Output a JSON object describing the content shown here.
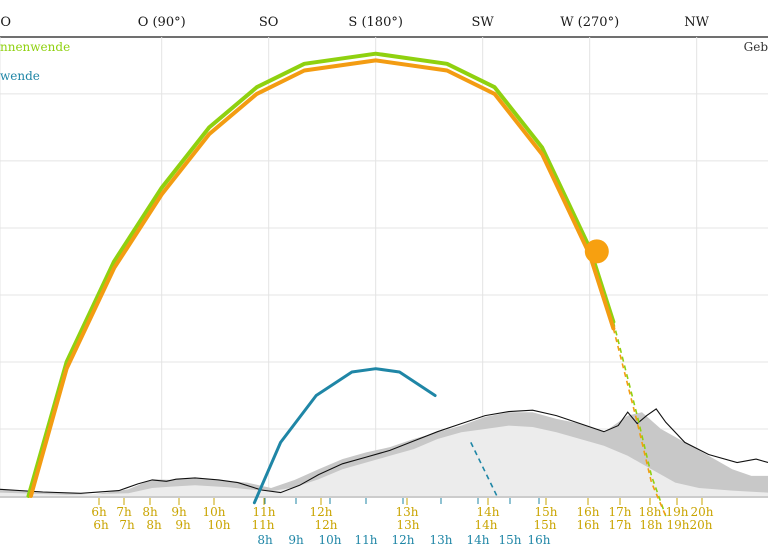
{
  "chart_data": {
    "type": "line",
    "title": "",
    "xlabel": "",
    "ylabel": "",
    "x_axis": "azimuth (degrees)",
    "xlim": [
      22,
      345
    ],
    "ylim": [
      0,
      67
    ],
    "grid": true,
    "directions": [
      {
        "label": "NO",
        "az": 22
      },
      {
        "label": "O (90°)",
        "az": 90
      },
      {
        "label": "SO",
        "az": 135
      },
      {
        "label": "S (180°)",
        "az": 180
      },
      {
        "label": "SW",
        "az": 225
      },
      {
        "label": "W (270°)",
        "az": 270
      },
      {
        "label": "NW",
        "az": 315
      }
    ],
    "gridlines_y": [
      0,
      10,
      20,
      30,
      40,
      50,
      60
    ],
    "legend": [
      {
        "label": "nnenwende",
        "color": "#8fd10f",
        "placement": "top-left"
      },
      {
        "label": "wende",
        "color": "#1f86a6",
        "placement": "top-left"
      },
      {
        "label": "Geb",
        "color": "#333333",
        "placement": "top-right"
      }
    ],
    "series": [
      {
        "id": "summer",
        "color": "#8fd10f",
        "points": [
          [
            34,
            0
          ],
          [
            50,
            20
          ],
          [
            70,
            35
          ],
          [
            90,
            46
          ],
          [
            110,
            55
          ],
          [
            130,
            61
          ],
          [
            150,
            64.5
          ],
          [
            180,
            66
          ],
          [
            210,
            64.5
          ],
          [
            230,
            61
          ],
          [
            250,
            52
          ],
          [
            270,
            37
          ],
          [
            280,
            26
          ],
          [
            290,
            12
          ],
          [
            296,
            3
          ],
          [
            302,
            -3
          ]
        ],
        "solid_until_az": 288
      },
      {
        "id": "today",
        "color": "#f39c12",
        "points": [
          [
            35,
            0
          ],
          [
            50,
            19
          ],
          [
            70,
            34
          ],
          [
            90,
            45
          ],
          [
            110,
            54
          ],
          [
            130,
            60
          ],
          [
            150,
            63.5
          ],
          [
            180,
            65
          ],
          [
            210,
            63.5
          ],
          [
            230,
            60
          ],
          [
            250,
            51
          ],
          [
            270,
            36
          ],
          [
            280,
            25
          ],
          [
            290,
            11
          ],
          [
            296,
            2
          ],
          [
            302,
            -3
          ]
        ],
        "solid_until_az": 288
      },
      {
        "id": "winter",
        "color": "#1f86a6",
        "points": [
          [
            129,
            -1
          ],
          [
            140,
            8
          ],
          [
            155,
            15
          ],
          [
            170,
            18.5
          ],
          [
            180,
            19
          ],
          [
            190,
            18.5
          ],
          [
            205,
            15
          ],
          [
            220,
            8
          ],
          [
            231,
            0
          ]
        ],
        "solid_until_az": 217
      }
    ],
    "sun": {
      "az": 273,
      "alt": 36.5,
      "color": "#f7a010"
    },
    "horizon_dark": [
      [
        22,
        1
      ],
      [
        50,
        0.5
      ],
      [
        60,
        0.2
      ],
      [
        76,
        1
      ],
      [
        86,
        2.5
      ],
      [
        94,
        2.4
      ],
      [
        104,
        2.6
      ],
      [
        118,
        2.2
      ],
      [
        126,
        2
      ],
      [
        136,
        1.2
      ],
      [
        146,
        2.4
      ],
      [
        156,
        4
      ],
      [
        166,
        5.5
      ],
      [
        176,
        6.5
      ],
      [
        186,
        7.3
      ],
      [
        196,
        8.5
      ],
      [
        206,
        9.5
      ],
      [
        216,
        10.5
      ],
      [
        226,
        11.8
      ],
      [
        236,
        12.5
      ],
      [
        246,
        12.5
      ],
      [
        256,
        11.5
      ],
      [
        266,
        10.8
      ],
      [
        276,
        9.5
      ],
      [
        286,
        12
      ],
      [
        292,
        12.5
      ],
      [
        300,
        10
      ],
      [
        310,
        8
      ],
      [
        320,
        6
      ],
      [
        330,
        4
      ],
      [
        338,
        3
      ],
      [
        345,
        3
      ]
    ],
    "horizon_light": [
      [
        22,
        0.5
      ],
      [
        50,
        0.2
      ],
      [
        76,
        0.4
      ],
      [
        86,
        1.2
      ],
      [
        94,
        1.4
      ],
      [
        104,
        1.6
      ],
      [
        118,
        1.3
      ],
      [
        126,
        1
      ],
      [
        136,
        0.7
      ],
      [
        146,
        1.3
      ],
      [
        156,
        2.5
      ],
      [
        166,
        4
      ],
      [
        176,
        5
      ],
      [
        186,
        6
      ],
      [
        196,
        7
      ],
      [
        206,
        8.5
      ],
      [
        216,
        9.5
      ],
      [
        226,
        10
      ],
      [
        236,
        10.5
      ],
      [
        246,
        10.3
      ],
      [
        256,
        9.5
      ],
      [
        266,
        8.5
      ],
      [
        276,
        7.5
      ],
      [
        286,
        6
      ],
      [
        296,
        4
      ],
      [
        306,
        2
      ],
      [
        316,
        1.2
      ],
      [
        330,
        0.8
      ],
      [
        345,
        0.5
      ]
    ],
    "horizon_outline": [
      [
        22,
        1
      ],
      [
        40,
        0.6
      ],
      [
        56,
        0.4
      ],
      [
        72,
        0.8
      ],
      [
        80,
        1.8
      ],
      [
        86,
        2.4
      ],
      [
        92,
        2.2
      ],
      [
        96,
        2.5
      ],
      [
        104,
        2.7
      ],
      [
        114,
        2.4
      ],
      [
        122,
        2
      ],
      [
        132,
        0.9
      ],
      [
        140,
        0.5
      ],
      [
        148,
        1.6
      ],
      [
        156,
        3.2
      ],
      [
        166,
        4.8
      ],
      [
        176,
        5.8
      ],
      [
        186,
        6.8
      ],
      [
        196,
        8.2
      ],
      [
        206,
        9.6
      ],
      [
        216,
        10.8
      ],
      [
        226,
        12
      ],
      [
        236,
        12.6
      ],
      [
        246,
        12.8
      ],
      [
        256,
        12
      ],
      [
        266,
        10.8
      ],
      [
        276,
        9.6
      ],
      [
        282,
        10.5
      ],
      [
        286,
        12.5
      ],
      [
        290,
        10.8
      ],
      [
        294,
        12
      ],
      [
        298,
        13
      ],
      [
        302,
        11
      ],
      [
        310,
        8
      ],
      [
        320,
        6.2
      ],
      [
        332,
        5
      ],
      [
        340,
        5.5
      ],
      [
        345,
        5
      ]
    ],
    "hour_rows": [
      {
        "color": "#c9a400",
        "ticks": [
          {
            "label": "6h",
            "az": 52
          },
          {
            "label": "7h",
            "az": 62
          },
          {
            "label": "8h",
            "az": 71
          },
          {
            "label": "9h",
            "az": 80
          },
          {
            "label": "10h",
            "az": 93
          },
          {
            "label": "11h",
            "az": 112
          },
          {
            "label": "12h",
            "az": 141
          },
          {
            "label": "13h",
            "az": 181
          },
          {
            "label": "14h",
            "az": 211
          },
          {
            "label": "15h",
            "az": 230
          },
          {
            "label": "16h",
            "az": 257
          },
          {
            "label": "17h",
            "az": 269
          },
          {
            "label": "18h",
            "az": 279
          },
          {
            "label": "19h",
            "az": 290
          },
          {
            "label": "20h",
            "az": 300
          }
        ]
      },
      {
        "color": "#c9a400",
        "ticks": [
          {
            "label": "6h",
            "az": 52
          },
          {
            "label": "7h",
            "az": 62
          },
          {
            "label": "8h",
            "az": 71
          },
          {
            "label": "9h",
            "az": 80
          },
          {
            "label": "10h",
            "az": 93
          },
          {
            "label": "11h",
            "az": 112
          },
          {
            "label": "12h",
            "az": 141
          },
          {
            "label": "13h",
            "az": 181
          },
          {
            "label": "14h",
            "az": 211
          },
          {
            "label": "15h",
            "az": 230
          },
          {
            "label": "16h",
            "az": 257
          },
          {
            "label": "17h",
            "az": 269
          },
          {
            "label": "18h",
            "az": 279
          },
          {
            "label": "19h",
            "az": 290
          },
          {
            "label": "20h",
            "az": 300
          }
        ]
      },
      {
        "color": "#c9a400",
        "ticks": [
          {
            "label": "11h",
            "az": 112
          },
          {
            "label": "12h",
            "az": 141
          },
          {
            "label": "13h",
            "az": 181
          },
          {
            "label": "14h",
            "az": 211
          },
          {
            "label": "15h",
            "az": 230
          }
        ]
      },
      {
        "color": "#1f86a6",
        "ticks": [
          {
            "label": "8h",
            "az": 112
          },
          {
            "label": "9h",
            "az": 125
          },
          {
            "label": "10h",
            "az": 140
          },
          {
            "label": "11h",
            "az": 157
          },
          {
            "label": "12h",
            "az": 176
          },
          {
            "label": "13h",
            "az": 190
          },
          {
            "label": "14h",
            "az": 205
          },
          {
            "label": "15h",
            "az": 220
          },
          {
            "label": "16h",
            "az": 233
          }
        ]
      }
    ]
  }
}
